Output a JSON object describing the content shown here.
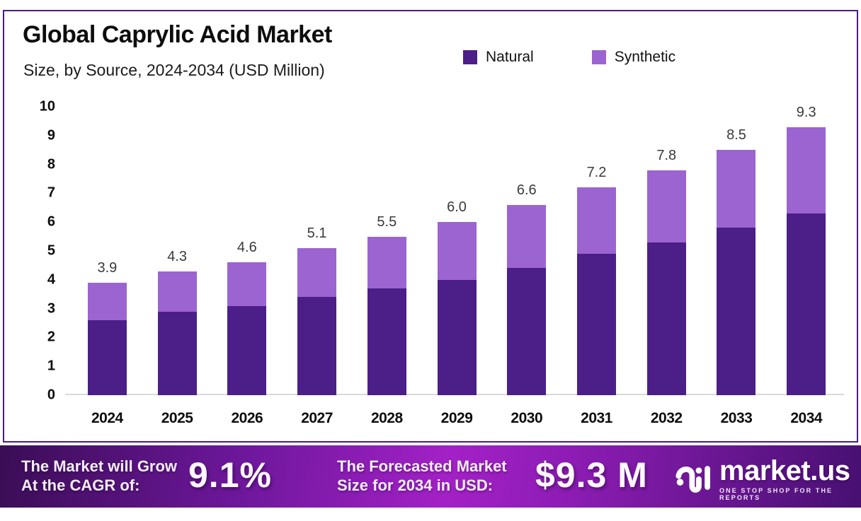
{
  "header": {
    "title": "Global Caprylic Acid Market",
    "subtitle": "Size, by Source, 2024-2034 (USD Million)"
  },
  "legend": [
    {
      "label": "Natural",
      "color": "#4b1e88"
    },
    {
      "label": "Synthetic",
      "color": "#9b64d0"
    }
  ],
  "chart_data": {
    "type": "bar",
    "stacked": true,
    "title": "Global Caprylic Acid Market Size, by Source, 2024-2034 (USD Million)",
    "categories": [
      "2024",
      "2025",
      "2026",
      "2027",
      "2028",
      "2029",
      "2030",
      "2031",
      "2032",
      "2033",
      "2034"
    ],
    "series": [
      {
        "name": "Natural",
        "color": "#4b1e88",
        "values": [
          2.6,
          2.9,
          3.1,
          3.4,
          3.7,
          4.0,
          4.4,
          4.9,
          5.3,
          5.8,
          6.3
        ]
      },
      {
        "name": "Synthetic",
        "color": "#9b64d0",
        "values": [
          1.3,
          1.4,
          1.5,
          1.7,
          1.8,
          2.0,
          2.2,
          2.3,
          2.5,
          2.7,
          3.0
        ]
      }
    ],
    "totals": [
      3.9,
      4.3,
      4.6,
      5.1,
      5.5,
      6.0,
      6.6,
      7.2,
      7.8,
      8.5,
      9.3
    ],
    "total_labels": [
      "3.9",
      "4.3",
      "4.6",
      "5.1",
      "5.5",
      "6.0",
      "6.6",
      "7.2",
      "7.8",
      "8.5",
      "9.3"
    ],
    "xlabel": "",
    "ylabel": "",
    "ylim": [
      0,
      10
    ],
    "yticks": [
      0,
      1,
      2,
      3,
      4,
      5,
      6,
      7,
      8,
      9,
      10
    ],
    "grid": false,
    "legend_position": "top-right"
  },
  "banner": {
    "cagr_label_line1": "The Market will Grow",
    "cagr_label_line2": "At the CAGR of:",
    "cagr_value": "9.1%",
    "forecast_label_line1": "The Forecasted Market",
    "forecast_label_line2": "Size for 2034 in USD:",
    "forecast_value": "$9.3 M",
    "logo_name": "market.us",
    "logo_tagline": "ONE STOP SHOP FOR THE REPORTS"
  },
  "colors": {
    "natural": "#4b1e88",
    "synthetic": "#9b64d0",
    "card_border": "#4a1d7e",
    "banner_dark": "#3a0d55",
    "banner_bright": "#a321c6",
    "baseline": "#d9d9d9"
  }
}
